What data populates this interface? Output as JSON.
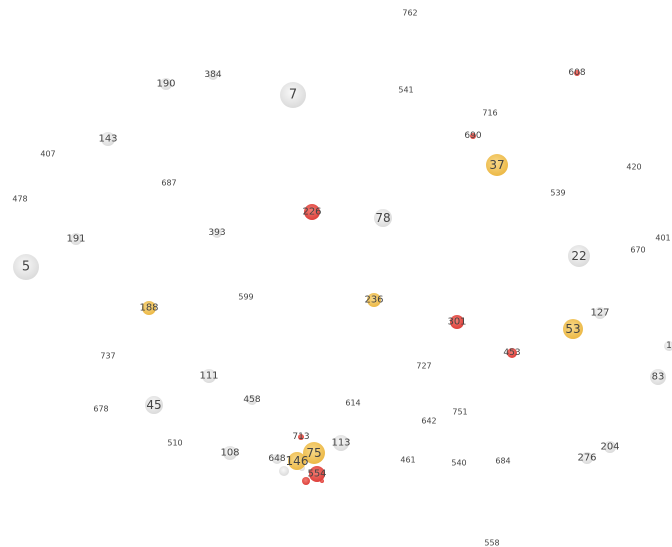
{
  "chart_data": {
    "type": "scatter",
    "title": "",
    "xlabel": "",
    "ylabel": "",
    "grid": false,
    "legend": "none",
    "xlim": [
      0,
      672
    ],
    "ylim": [
      0,
      547
    ],
    "colors": {
      "gray": "#dcdcdc",
      "yellow": "#f2c45a",
      "red": "#e8534f"
    },
    "points": [
      {
        "label": "762",
        "x": 410,
        "y": 13,
        "r": 0,
        "color": "gray"
      },
      {
        "label": "190",
        "x": 166,
        "y": 84,
        "r": 6,
        "color": "gray"
      },
      {
        "label": "384",
        "x": 213,
        "y": 75,
        "r": 5,
        "color": "gray"
      },
      {
        "label": "7",
        "x": 293,
        "y": 95,
        "r": 13,
        "color": "gray"
      },
      {
        "label": "541",
        "x": 406,
        "y": 90,
        "r": 0,
        "color": "gray"
      },
      {
        "label": "608",
        "x": 577,
        "y": 73,
        "r": 3,
        "color": "red"
      },
      {
        "label": "716",
        "x": 490,
        "y": 113,
        "r": 0,
        "color": "gray"
      },
      {
        "label": "143",
        "x": 108,
        "y": 139,
        "r": 7,
        "color": "gray"
      },
      {
        "label": "690",
        "x": 473,
        "y": 136,
        "r": 3,
        "color": "red"
      },
      {
        "label": "407",
        "x": 48,
        "y": 154,
        "r": 0,
        "color": "gray"
      },
      {
        "label": "37",
        "x": 497,
        "y": 165,
        "r": 11,
        "color": "yellow"
      },
      {
        "label": "420",
        "x": 634,
        "y": 167,
        "r": 0,
        "color": "gray"
      },
      {
        "label": "687",
        "x": 169,
        "y": 183,
        "r": 0,
        "color": "gray"
      },
      {
        "label": "539",
        "x": 558,
        "y": 193,
        "r": 0,
        "color": "gray"
      },
      {
        "label": "478",
        "x": 20,
        "y": 199,
        "r": 0,
        "color": "gray"
      },
      {
        "label": "226",
        "x": 312,
        "y": 212,
        "r": 8,
        "color": "red"
      },
      {
        "label": "78",
        "x": 383,
        "y": 218,
        "r": 9,
        "color": "gray"
      },
      {
        "label": "393",
        "x": 217,
        "y": 233,
        "r": 5,
        "color": "gray"
      },
      {
        "label": "191",
        "x": 76,
        "y": 239,
        "r": 6,
        "color": "gray"
      },
      {
        "label": "401",
        "x": 663,
        "y": 238,
        "r": 0,
        "color": "gray"
      },
      {
        "label": "670",
        "x": 638,
        "y": 250,
        "r": 0,
        "color": "gray"
      },
      {
        "label": "22",
        "x": 579,
        "y": 256,
        "r": 11,
        "color": "gray"
      },
      {
        "label": "5",
        "x": 26,
        "y": 267,
        "r": 13,
        "color": "gray"
      },
      {
        "label": "599",
        "x": 246,
        "y": 297,
        "r": 0,
        "color": "gray"
      },
      {
        "label": "236",
        "x": 374,
        "y": 300,
        "r": 7,
        "color": "yellow"
      },
      {
        "label": "188",
        "x": 149,
        "y": 308,
        "r": 7,
        "color": "yellow"
      },
      {
        "label": "127",
        "x": 600,
        "y": 313,
        "r": 6,
        "color": "gray"
      },
      {
        "label": "301",
        "x": 457,
        "y": 322,
        "r": 7,
        "color": "red"
      },
      {
        "label": "53",
        "x": 573,
        "y": 329,
        "r": 10,
        "color": "yellow"
      },
      {
        "label": "1",
        "x": 669,
        "y": 346,
        "r": 5,
        "color": "gray"
      },
      {
        "label": "453",
        "x": 512,
        "y": 353,
        "r": 5,
        "color": "red"
      },
      {
        "label": "737",
        "x": 108,
        "y": 356,
        "r": 0,
        "color": "gray"
      },
      {
        "label": "727",
        "x": 424,
        "y": 366,
        "r": 0,
        "color": "gray"
      },
      {
        "label": "111",
        "x": 209,
        "y": 376,
        "r": 7,
        "color": "gray"
      },
      {
        "label": "83",
        "x": 658,
        "y": 377,
        "r": 8,
        "color": "gray"
      },
      {
        "label": "458",
        "x": 252,
        "y": 400,
        "r": 5,
        "color": "gray"
      },
      {
        "label": "45",
        "x": 154,
        "y": 405,
        "r": 9,
        "color": "gray"
      },
      {
        "label": "614",
        "x": 353,
        "y": 403,
        "r": 0,
        "color": "gray"
      },
      {
        "label": "678",
        "x": 101,
        "y": 409,
        "r": 0,
        "color": "gray"
      },
      {
        "label": "751",
        "x": 460,
        "y": 412,
        "r": 0,
        "color": "gray"
      },
      {
        "label": "642",
        "x": 429,
        "y": 421,
        "r": 0,
        "color": "gray"
      },
      {
        "label": "510",
        "x": 175,
        "y": 443,
        "r": 0,
        "color": "gray"
      },
      {
        "label": "713",
        "x": 301,
        "y": 437,
        "r": 3,
        "color": "red"
      },
      {
        "label": "113",
        "x": 341,
        "y": 443,
        "r": 8,
        "color": "gray"
      },
      {
        "label": "108",
        "x": 230,
        "y": 453,
        "r": 7,
        "color": "gray"
      },
      {
        "label": "75",
        "x": 314,
        "y": 453,
        "r": 11,
        "color": "yellow"
      },
      {
        "label": "204",
        "x": 610,
        "y": 447,
        "r": 6,
        "color": "gray"
      },
      {
        "label": "648",
        "x": 277,
        "y": 459,
        "r": 5,
        "color": "gray"
      },
      {
        "label": "146",
        "x": 297,
        "y": 461,
        "r": 9,
        "color": "yellow"
      },
      {
        "label": "461",
        "x": 408,
        "y": 460,
        "r": 0,
        "color": "gray"
      },
      {
        "label": "276",
        "x": 587,
        "y": 458,
        "r": 6,
        "color": "gray"
      },
      {
        "label": "540",
        "x": 459,
        "y": 463,
        "r": 0,
        "color": "gray"
      },
      {
        "label": "684",
        "x": 503,
        "y": 461,
        "r": 0,
        "color": "gray"
      },
      {
        "label": "554",
        "x": 317,
        "y": 474,
        "r": 8,
        "color": "red"
      },
      {
        "label": "558",
        "x": 492,
        "y": 543,
        "r": 0,
        "color": "gray"
      }
    ],
    "unlabeled_points": [
      {
        "x": 284,
        "y": 471,
        "r": 5,
        "color": "gray"
      },
      {
        "x": 306,
        "y": 481,
        "r": 4,
        "color": "red"
      },
      {
        "x": 322,
        "y": 481,
        "r": 2,
        "color": "red"
      },
      {
        "x": 302,
        "y": 468,
        "r": 3,
        "color": "gray"
      }
    ]
  }
}
